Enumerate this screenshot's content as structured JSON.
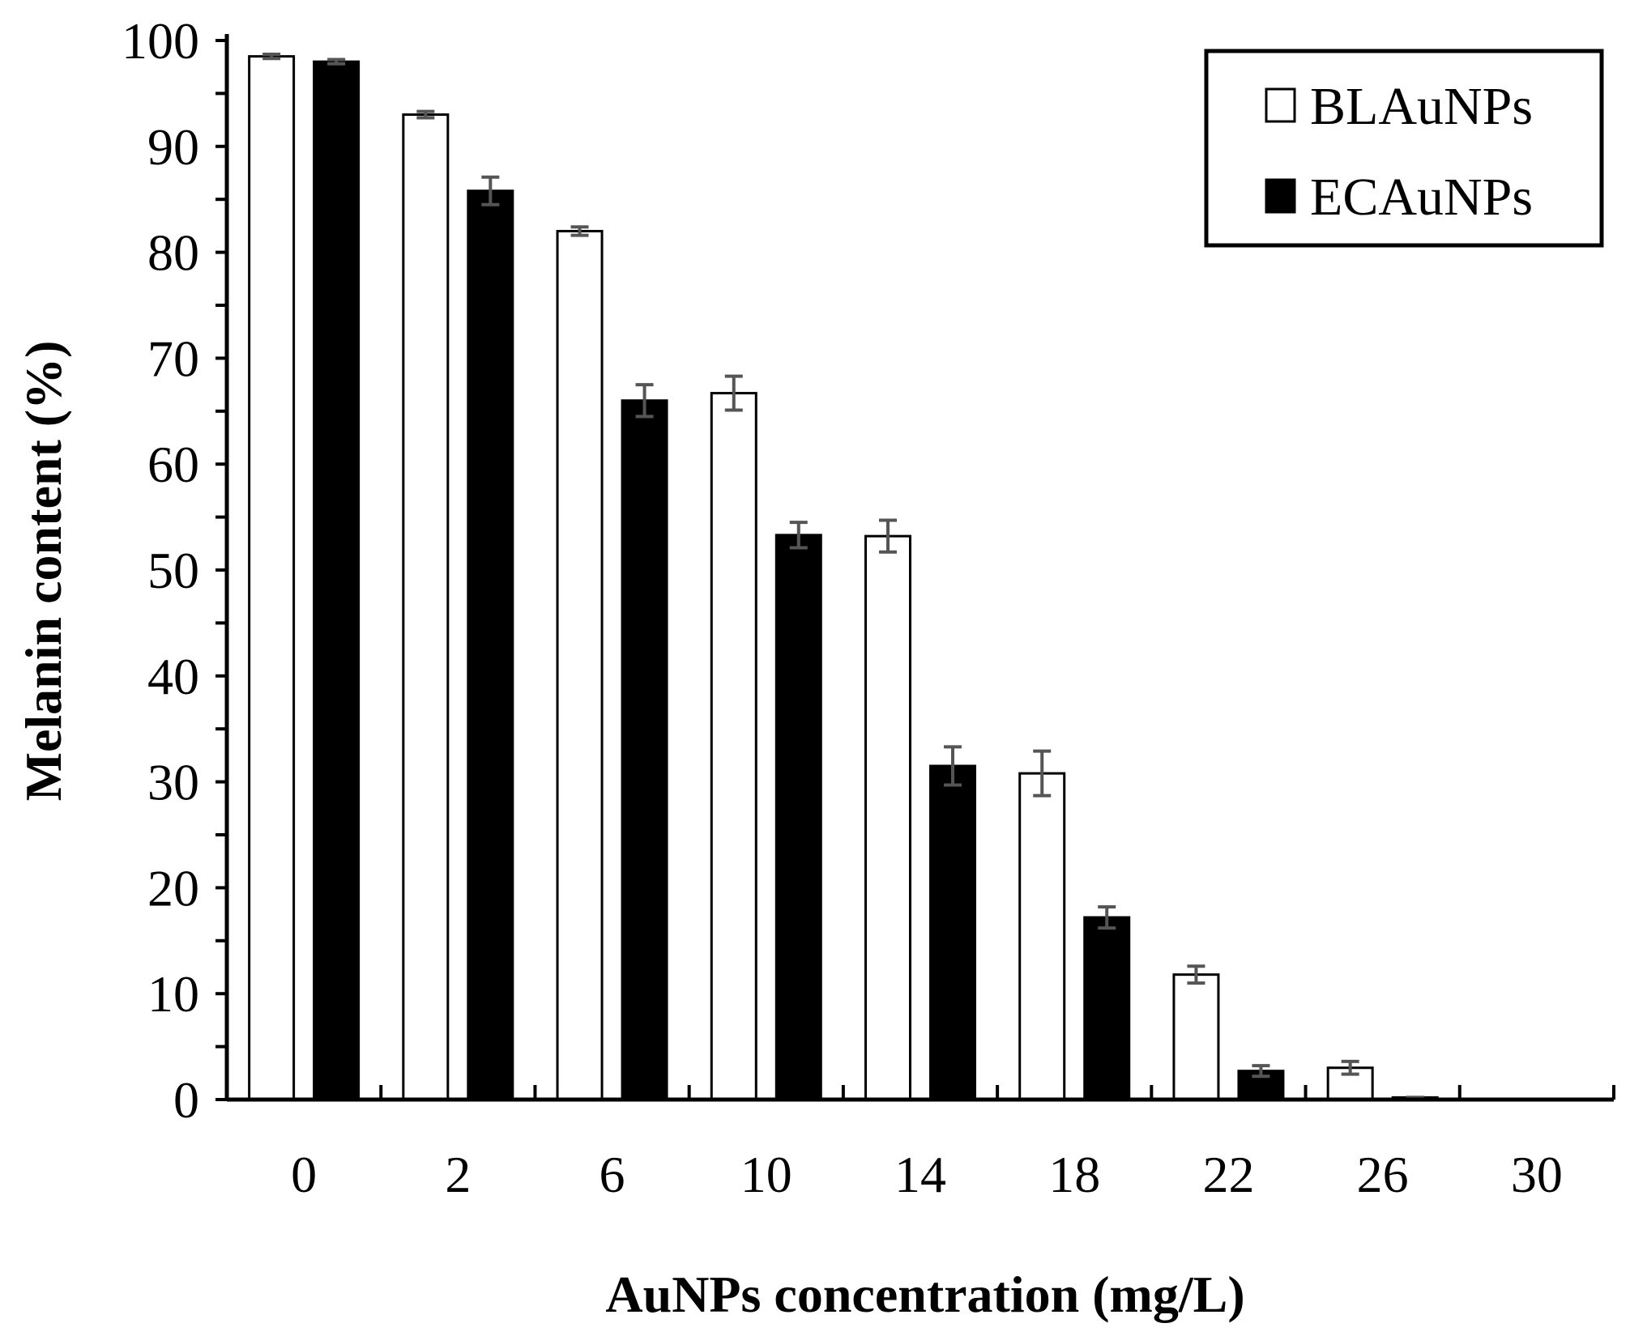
{
  "chart_data": {
    "type": "bar",
    "title": "",
    "xlabel": "AuNPs concentration (mg/L)",
    "ylabel": "Melanin content (%)",
    "ylim": [
      0,
      100
    ],
    "yticks": [
      "0",
      "10",
      "20",
      "30",
      "40",
      "50",
      "60",
      "70",
      "80",
      "90",
      "100"
    ],
    "categories": [
      "0",
      "2",
      "6",
      "10",
      "14",
      "18",
      "22",
      "26",
      "30"
    ],
    "legend_position": "top-right",
    "series": [
      {
        "name": "BLAuNPs",
        "color": "#ffffff",
        "values": [
          98.5,
          93.0,
          82.0,
          66.7,
          53.2,
          30.8,
          11.8,
          3.0,
          0
        ],
        "errors": [
          0.2,
          0.3,
          0.4,
          1.6,
          1.5,
          2.1,
          0.8,
          0.6,
          0
        ]
      },
      {
        "name": "ECAuNPs",
        "color": "#000000",
        "values": [
          98.0,
          85.8,
          66.0,
          53.3,
          31.5,
          17.2,
          2.7,
          0.2,
          0
        ],
        "errors": [
          0.2,
          1.3,
          1.5,
          1.2,
          1.8,
          1.0,
          0.5,
          0,
          0
        ]
      }
    ]
  }
}
